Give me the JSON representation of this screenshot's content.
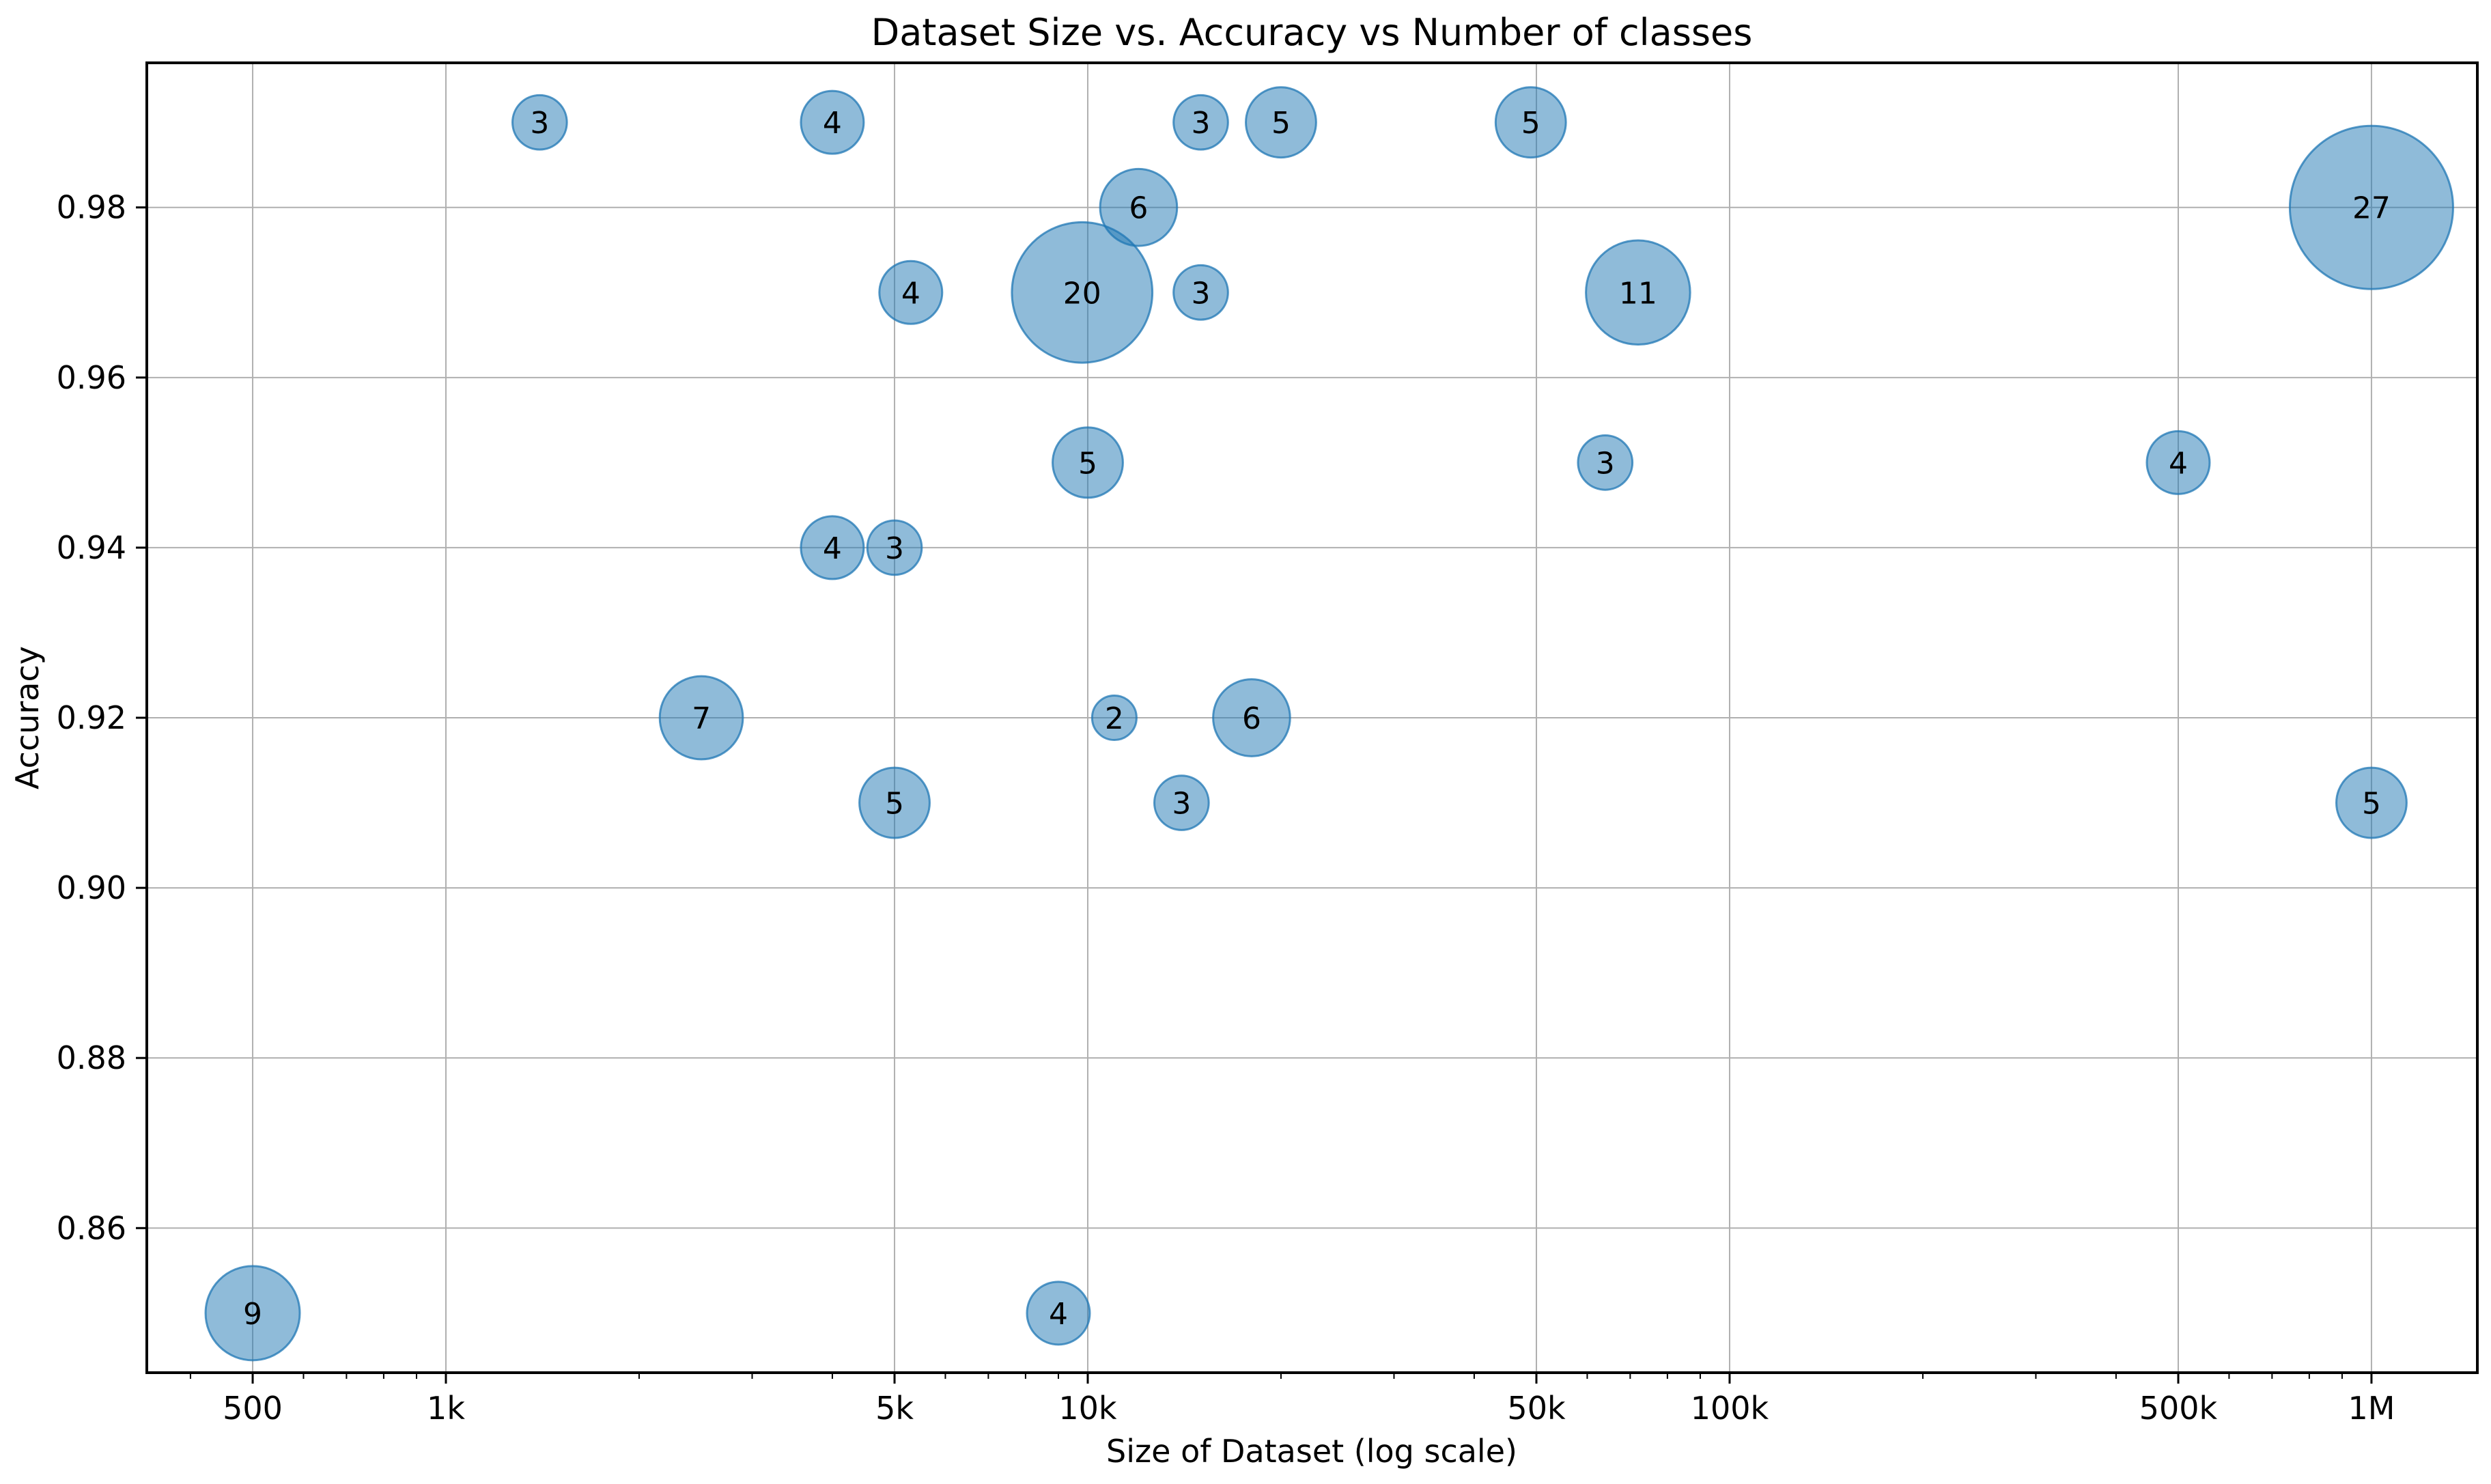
{
  "chart": {
    "title": "Dataset Size vs. Accuracy vs Number of classes",
    "xlabel": "Size of Dataset (log scale)",
    "ylabel": "Accuracy"
  },
  "chart_data": {
    "type": "scatter",
    "subtype": "bubble",
    "title": "Dataset Size vs. Accuracy vs Number of classes",
    "xlabel": "Size of Dataset (log scale)",
    "ylabel": "Accuracy",
    "x_scale": "log",
    "y_scale": "linear",
    "grid": true,
    "legend": "none",
    "xlim": [
      342,
      1462000
    ],
    "ylim": [
      0.843,
      0.997
    ],
    "x_ticks": [
      {
        "value": 500,
        "label": "500"
      },
      {
        "value": 1000,
        "label": "1k"
      },
      {
        "value": 5000,
        "label": "5k"
      },
      {
        "value": 10000,
        "label": "10k"
      },
      {
        "value": 50000,
        "label": "50k"
      },
      {
        "value": 100000,
        "label": "100k"
      },
      {
        "value": 500000,
        "label": "500k"
      },
      {
        "value": 1000000,
        "label": "1M"
      }
    ],
    "x_minor_subs": [
      2,
      3,
      4,
      6,
      7,
      8,
      9
    ],
    "y_ticks": [
      {
        "value": 0.86,
        "label": "0.86"
      },
      {
        "value": 0.88,
        "label": "0.88"
      },
      {
        "value": 0.9,
        "label": "0.90"
      },
      {
        "value": 0.92,
        "label": "0.92"
      },
      {
        "value": 0.94,
        "label": "0.94"
      },
      {
        "value": 0.96,
        "label": "0.96"
      },
      {
        "value": 0.98,
        "label": "0.98"
      }
    ],
    "bubble_size_meaning": "Number of classes (bubble area proportional to value, value printed in bubble)",
    "points": [
      {
        "x": 1400,
        "y": 0.99,
        "classes": 3
      },
      {
        "x": 4000,
        "y": 0.99,
        "classes": 4
      },
      {
        "x": 15000,
        "y": 0.99,
        "classes": 3
      },
      {
        "x": 20000,
        "y": 0.99,
        "classes": 5
      },
      {
        "x": 49000,
        "y": 0.99,
        "classes": 5
      },
      {
        "x": 12000,
        "y": 0.98,
        "classes": 6
      },
      {
        "x": 1000000,
        "y": 0.98,
        "classes": 27
      },
      {
        "x": 5300,
        "y": 0.97,
        "classes": 4
      },
      {
        "x": 9800,
        "y": 0.97,
        "classes": 20
      },
      {
        "x": 15000,
        "y": 0.97,
        "classes": 3
      },
      {
        "x": 72000,
        "y": 0.97,
        "classes": 11
      },
      {
        "x": 10000,
        "y": 0.95,
        "classes": 5
      },
      {
        "x": 64000,
        "y": 0.95,
        "classes": 3
      },
      {
        "x": 500000,
        "y": 0.95,
        "classes": 4
      },
      {
        "x": 4000,
        "y": 0.94,
        "classes": 4
      },
      {
        "x": 5000,
        "y": 0.94,
        "classes": 3
      },
      {
        "x": 2500,
        "y": 0.92,
        "classes": 7
      },
      {
        "x": 11000,
        "y": 0.92,
        "classes": 2
      },
      {
        "x": 18000,
        "y": 0.92,
        "classes": 6
      },
      {
        "x": 5000,
        "y": 0.91,
        "classes": 5
      },
      {
        "x": 14000,
        "y": 0.91,
        "classes": 3
      },
      {
        "x": 1000000,
        "y": 0.91,
        "classes": 5
      },
      {
        "x": 500,
        "y": 0.85,
        "classes": 9
      },
      {
        "x": 9000,
        "y": 0.85,
        "classes": 4
      }
    ],
    "colors": {
      "bubble_fill": "#1f77b4",
      "bubble_fill_opacity": 0.5,
      "bubble_edge": "#1f77b4",
      "bubble_edge_opacity": 0.75,
      "grid": "#b0b0b0",
      "spine": "#000000",
      "text": "#000000",
      "background": "#ffffff"
    }
  }
}
